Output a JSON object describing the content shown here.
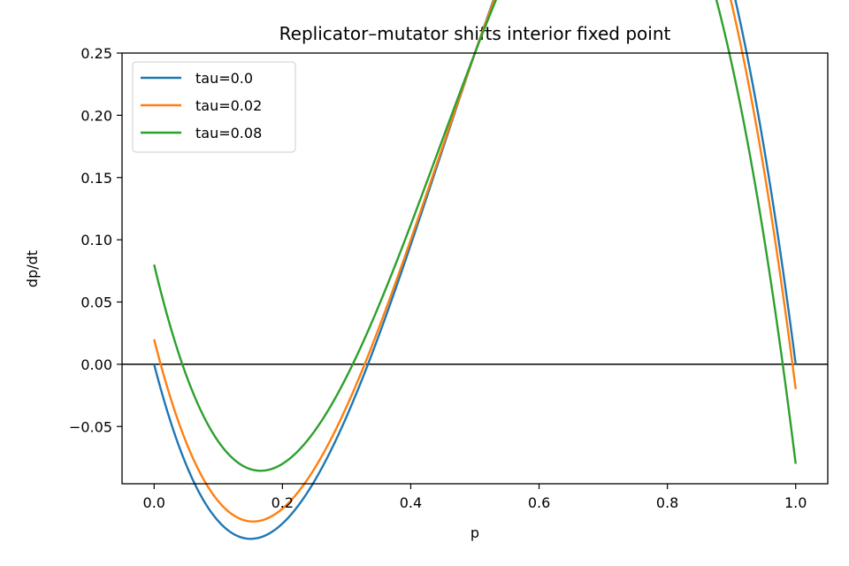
{
  "chart_data": {
    "type": "line",
    "title": "Replicator–mutator shifts interior fixed point",
    "xlabel": "p",
    "ylabel": "dp/dt",
    "xlim": [
      -0.05,
      1.05
    ],
    "ylim": [
      -0.096,
      0.25
    ],
    "xticks": [
      0.0,
      0.2,
      0.4,
      0.6,
      0.8,
      1.0
    ],
    "xtick_labels": [
      "0.0",
      "0.2",
      "0.4",
      "0.6",
      "0.8",
      "1.0"
    ],
    "yticks": [
      -0.05,
      0.0,
      0.05,
      0.1,
      0.15,
      0.2,
      0.25
    ],
    "ytick_labels": [
      "−0.05",
      "0.00",
      "0.05",
      "0.10",
      "0.15",
      "0.20",
      "0.25"
    ],
    "hline": 0.0,
    "legend_position": "upper-left",
    "series": [
      {
        "name": "tau=0.0",
        "tau": 0.0,
        "color": "#1f77b4"
      },
      {
        "name": "tau=0.02",
        "tau": 0.02,
        "color": "#ff7f0e"
      },
      {
        "name": "tau=0.08",
        "tau": 0.08,
        "color": "#2ca02c"
      }
    ],
    "model": "dp/dt = 2p(1-p)(3p-1) + tau(1-2p)",
    "x_range": [
      0.0,
      1.0
    ],
    "grid": false
  }
}
